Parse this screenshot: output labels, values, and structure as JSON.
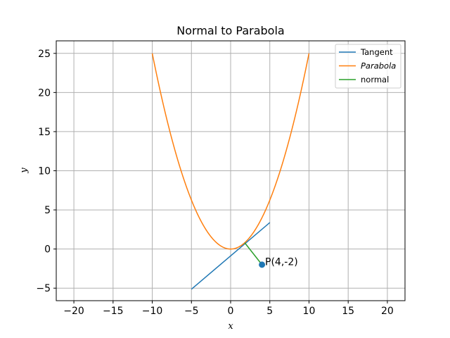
{
  "chart_data": {
    "type": "line",
    "title": "Normal to Parabola",
    "xlabel": "x",
    "ylabel": "y",
    "xlim": [
      -22.25,
      22.25
    ],
    "ylim": [
      -6.6,
      26.6
    ],
    "xticks": [
      -20,
      -15,
      -10,
      -5,
      0,
      5,
      10,
      15,
      20
    ],
    "yticks": [
      -5,
      0,
      5,
      10,
      15,
      20,
      25
    ],
    "xtick_labels": [
      "−20",
      "−15",
      "−10",
      "−5",
      "0",
      "5",
      "10",
      "15",
      "20"
    ],
    "ytick_labels": [
      "−5",
      "0",
      "5",
      "10",
      "15",
      "20",
      "25"
    ],
    "grid": true,
    "legend_position": "top-right",
    "series": [
      {
        "name": "Tangent",
        "color": "#1f77b4",
        "kind": "line",
        "x": [
          -5,
          5
        ],
        "y": [
          -5.13,
          3.38
        ]
      },
      {
        "name": "Parabola",
        "color": "#ff7f0e",
        "kind": "function",
        "function": "y = x^2 / 4",
        "x_range": [
          -10,
          10
        ]
      },
      {
        "name": "normal",
        "color": "#2ca02c",
        "kind": "line",
        "x": [
          1.8,
          4
        ],
        "y": [
          0.8,
          -2
        ]
      }
    ],
    "point": {
      "x": 4,
      "y": -2,
      "color": "#1f77b4"
    },
    "annotation": {
      "text": "P(4,-2)",
      "x": 4.4,
      "y": -1.6
    }
  }
}
